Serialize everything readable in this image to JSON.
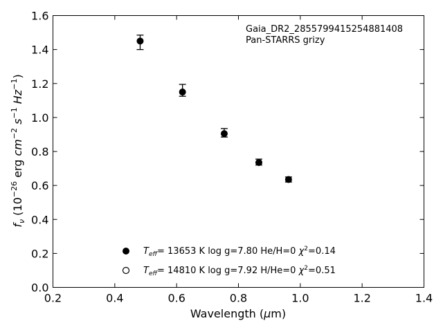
{
  "chart_data": {
    "type": "scatter",
    "xlim": [
      0.2,
      1.4
    ],
    "ylim": [
      0.0,
      1.6
    ],
    "x_ticks": [
      "0.2",
      "0.4",
      "0.6",
      "0.8",
      "1.0",
      "1.2",
      "1.4"
    ],
    "y_ticks": [
      "0.0",
      "0.2",
      "0.4",
      "0.6",
      "0.8",
      "1.0",
      "1.2",
      "1.4",
      "1.6"
    ],
    "x_tick_values": [
      0.2,
      0.4,
      0.6,
      0.8,
      1.0,
      1.2,
      1.4
    ],
    "y_tick_values": [
      0.0,
      0.2,
      0.4,
      0.6,
      0.8,
      1.0,
      1.2,
      1.4,
      1.6
    ],
    "xlabel": "Wavelength (μm)",
    "ylabel": "fν (10⁻²⁶ erg cm⁻² s⁻¹ Hz⁻¹)",
    "annotation": {
      "object": "Gaia_DR2_2855799415254881408",
      "photometry": "Pan-STARRS grizy"
    },
    "grid": false,
    "legend_position": "bottom-center",
    "series": [
      {
        "marker": "filled-circle",
        "x": [
          0.482,
          0.619,
          0.754,
          0.866,
          0.962
        ],
        "y": [
          1.45,
          1.15,
          0.905,
          0.735,
          0.635
        ],
        "yerr_low": [
          0.05,
          0.025,
          0.02,
          0.015,
          0.015
        ],
        "yerr_high": [
          0.035,
          0.045,
          0.03,
          0.02,
          0.015
        ]
      }
    ],
    "legend": [
      {
        "marker": "filled",
        "teff": "= 13653 K",
        "rest": "log g=7.80  He/H=0",
        "chi": "=0.14"
      },
      {
        "marker": "open",
        "teff": "= 14810 K",
        "rest": "log g=7.92  H/He=0",
        "chi": "=0.51"
      }
    ]
  }
}
